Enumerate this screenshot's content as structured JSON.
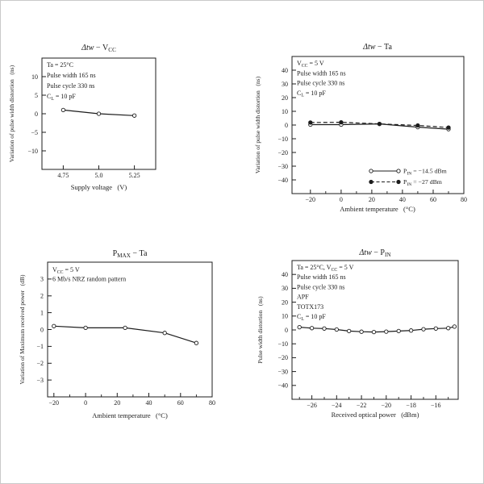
{
  "page": {
    "background": "#ffffff",
    "ink": "#1c1c1c",
    "frame_border": "#c9c9c9"
  },
  "chart_data": [
    {
      "id": "dtw-vcc",
      "type": "line",
      "title": "Δtw − VCC",
      "title_parts": [
        {
          "t": "Δtw",
          "italic": true
        },
        {
          "t": " − V"
        },
        {
          "t": "CC",
          "sub": true
        }
      ],
      "xlabel": "Supply voltage   (V)",
      "ylabel": "Variation of pulse width distortion   (ns)",
      "xlim": [
        4.6,
        5.4
      ],
      "ylim": [
        -15,
        15
      ],
      "grid": false,
      "xticks": [
        {
          "v": 4.75,
          "label": "4.75"
        },
        {
          "v": 5.0,
          "label": "5.0"
        },
        {
          "v": 5.25,
          "label": "5.25"
        }
      ],
      "xminor": [],
      "yticks": [
        {
          "v": 10,
          "label": "10"
        },
        {
          "v": 5,
          "label": "5"
        },
        {
          "v": 0,
          "label": "0"
        },
        {
          "v": -5,
          "label": "−5"
        },
        {
          "v": -10,
          "label": "−10"
        }
      ],
      "annotations": [
        [
          {
            "t": "Ta = 25°C"
          }
        ],
        [
          {
            "t": "Pulse width 165 ns"
          }
        ],
        [
          {
            "t": "Pulse cycle 330 ns"
          }
        ],
        [
          {
            "t": "C"
          },
          {
            "t": "L",
            "sub": true
          },
          {
            "t": " = 10 pF"
          }
        ]
      ],
      "series": [
        {
          "name": "",
          "marker": "open",
          "dash": false,
          "points": [
            [
              4.75,
              1
            ],
            [
              5.0,
              0
            ],
            [
              5.25,
              -0.5
            ]
          ]
        }
      ],
      "legend": null
    },
    {
      "id": "dtw-ta",
      "type": "line",
      "title": "Δtw − Ta",
      "title_parts": [
        {
          "t": "Δtw",
          "italic": true
        },
        {
          "t": " − Ta"
        }
      ],
      "xlabel": "Ambient temperature   (°C)",
      "ylabel": "Variation of pulse width distortion   (ns)",
      "xlim": [
        -32,
        80
      ],
      "ylim": [
        -50,
        50
      ],
      "grid": false,
      "xticks": [
        {
          "v": -20,
          "label": "−20"
        },
        {
          "v": 0,
          "label": "0"
        },
        {
          "v": 20,
          "label": "20"
        },
        {
          "v": 40,
          "label": "40"
        },
        {
          "v": 60,
          "label": "60"
        },
        {
          "v": 80,
          "label": "80"
        }
      ],
      "xminor": [
        -10,
        10,
        30,
        50,
        70
      ],
      "yticks": [
        {
          "v": 40,
          "label": "40"
        },
        {
          "v": 30,
          "label": "30"
        },
        {
          "v": 20,
          "label": "20"
        },
        {
          "v": 10,
          "label": "10"
        },
        {
          "v": 0,
          "label": "0"
        },
        {
          "v": -10,
          "label": "−10"
        },
        {
          "v": -20,
          "label": "−20"
        },
        {
          "v": -30,
          "label": "−30"
        },
        {
          "v": -40,
          "label": "−40"
        }
      ],
      "annotations": [
        [
          {
            "t": "V"
          },
          {
            "t": "CC",
            "sub": true
          },
          {
            "t": " = 5 V"
          }
        ],
        [
          {
            "t": "Pulse width 165 ns"
          }
        ],
        [
          {
            "t": "Pulse cycle 330 ns"
          }
        ],
        [
          {
            "t": "C"
          },
          {
            "t": "L",
            "sub": true
          },
          {
            "t": " = 10 pF"
          }
        ]
      ],
      "series": [
        {
          "name": "PIN = −14.5 dBm",
          "marker": "open",
          "dash": false,
          "points": [
            [
              -20,
              0.3
            ],
            [
              0,
              0.3
            ],
            [
              25,
              0.8
            ],
            [
              50,
              -1.5
            ],
            [
              70,
              -3
            ]
          ]
        },
        {
          "name": "PIN = −27 dBm",
          "marker": "filled",
          "dash": true,
          "points": [
            [
              -20,
              1.8
            ],
            [
              0,
              2
            ],
            [
              25,
              0.8
            ],
            [
              50,
              -0.3
            ],
            [
              70,
              -1.8
            ]
          ]
        }
      ],
      "legend": {
        "position": "inside-bottom-right",
        "items": [
          {
            "label": "PIN = −14.5 dBm",
            "label_parts": [
              {
                "t": "P"
              },
              {
                "t": "IN",
                "sub": true
              },
              {
                "t": " = −14.5 dBm"
              }
            ],
            "marker": "open",
            "dash": false
          },
          {
            "label": "PIN = −27 dBm",
            "label_parts": [
              {
                "t": "P"
              },
              {
                "t": "IN",
                "sub": true
              },
              {
                "t": " = −27 dBm"
              }
            ],
            "marker": "filled",
            "dash": true
          }
        ]
      }
    },
    {
      "id": "pmax-ta",
      "type": "line",
      "title": "PMAX − Ta",
      "title_parts": [
        {
          "t": "P"
        },
        {
          "t": "MAX",
          "sub": true
        },
        {
          "t": " − Ta"
        }
      ],
      "xlabel": "Ambient temperature   (°C)",
      "ylabel": "Variation of Maximum received power   (dB)",
      "xlim": [
        -24,
        80
      ],
      "ylim": [
        -4,
        4
      ],
      "grid": false,
      "xticks": [
        {
          "v": -20,
          "label": "−20"
        },
        {
          "v": 0,
          "label": "0"
        },
        {
          "v": 20,
          "label": "20"
        },
        {
          "v": 40,
          "label": "40"
        },
        {
          "v": 60,
          "label": "60"
        },
        {
          "v": 80,
          "label": "80"
        }
      ],
      "xminor": [
        -10,
        10,
        30,
        50,
        70
      ],
      "yticks": [
        {
          "v": 3,
          "label": "3"
        },
        {
          "v": 2,
          "label": "2"
        },
        {
          "v": 1,
          "label": "1"
        },
        {
          "v": 0,
          "label": "0"
        },
        {
          "v": -1,
          "label": "−1"
        },
        {
          "v": -2,
          "label": "−2"
        },
        {
          "v": -3,
          "label": "−3"
        }
      ],
      "annotations": [
        [
          {
            "t": "V"
          },
          {
            "t": "CC",
            "sub": true
          },
          {
            "t": " = 5 V"
          }
        ],
        [
          {
            "t": "6 Mb/s NRZ random pattern"
          }
        ]
      ],
      "series": [
        {
          "name": "",
          "marker": "open",
          "dash": false,
          "points": [
            [
              -20,
              0.2
            ],
            [
              0,
              0.1
            ],
            [
              25,
              0.1
            ],
            [
              50,
              -0.2
            ],
            [
              70,
              -0.8
            ]
          ]
        }
      ],
      "legend": null
    },
    {
      "id": "dtw-pin",
      "type": "line",
      "title": "Δtw − PIN",
      "title_parts": [
        {
          "t": "Δtw",
          "italic": true
        },
        {
          "t": " − P"
        },
        {
          "t": "IN",
          "sub": true
        }
      ],
      "xlabel": "Received optical power   (dBm)",
      "ylabel": "Pulse width distortion   (ns)",
      "xlim": [
        -27.6,
        -14.2
      ],
      "ylim": [
        -50,
        50
      ],
      "grid": false,
      "xticks": [
        {
          "v": -26,
          "label": "−26"
        },
        {
          "v": -24,
          "label": "−24"
        },
        {
          "v": -22,
          "label": "−22"
        },
        {
          "v": -20,
          "label": "−20"
        },
        {
          "v": -18,
          "label": "−18"
        },
        {
          "v": -16,
          "label": "−16"
        }
      ],
      "xminor": [
        -27,
        -25,
        -23,
        -21,
        -19,
        -17,
        -15
      ],
      "yticks": [
        {
          "v": 40,
          "label": "40"
        },
        {
          "v": 30,
          "label": "30"
        },
        {
          "v": 20,
          "label": "20"
        },
        {
          "v": 10,
          "label": "10"
        },
        {
          "v": 0,
          "label": "0"
        },
        {
          "v": -10,
          "label": "−10"
        },
        {
          "v": -20,
          "label": "−20"
        },
        {
          "v": -30,
          "label": "−30"
        },
        {
          "v": -40,
          "label": "−40"
        }
      ],
      "annotations": [
        [
          {
            "t": "Ta = 25°C, V"
          },
          {
            "t": "CC",
            "sub": true
          },
          {
            "t": " = 5 V"
          }
        ],
        [
          {
            "t": "Pulse width 165 ns"
          }
        ],
        [
          {
            "t": "Pulse cycle 330 ns"
          }
        ],
        [
          {
            "t": "APF"
          }
        ],
        [
          {
            "t": "TOTX173"
          }
        ],
        [
          {
            "t": "C"
          },
          {
            "t": "L",
            "sub": true
          },
          {
            "t": " = 10 pF"
          }
        ]
      ],
      "series": [
        {
          "name": "",
          "marker": "open",
          "dash": false,
          "points": [
            [
              -27,
              2
            ],
            [
              -26,
              1.3
            ],
            [
              -25,
              1
            ],
            [
              -24,
              0.3
            ],
            [
              -23,
              -0.8
            ],
            [
              -22,
              -1.3
            ],
            [
              -21,
              -1.5
            ],
            [
              -20,
              -1.2
            ],
            [
              -19,
              -0.8
            ],
            [
              -18,
              -0.4
            ],
            [
              -17,
              0.5
            ],
            [
              -16,
              1
            ],
            [
              -15,
              1.3
            ],
            [
              -14.5,
              2.4
            ]
          ]
        }
      ],
      "legend": null
    }
  ]
}
